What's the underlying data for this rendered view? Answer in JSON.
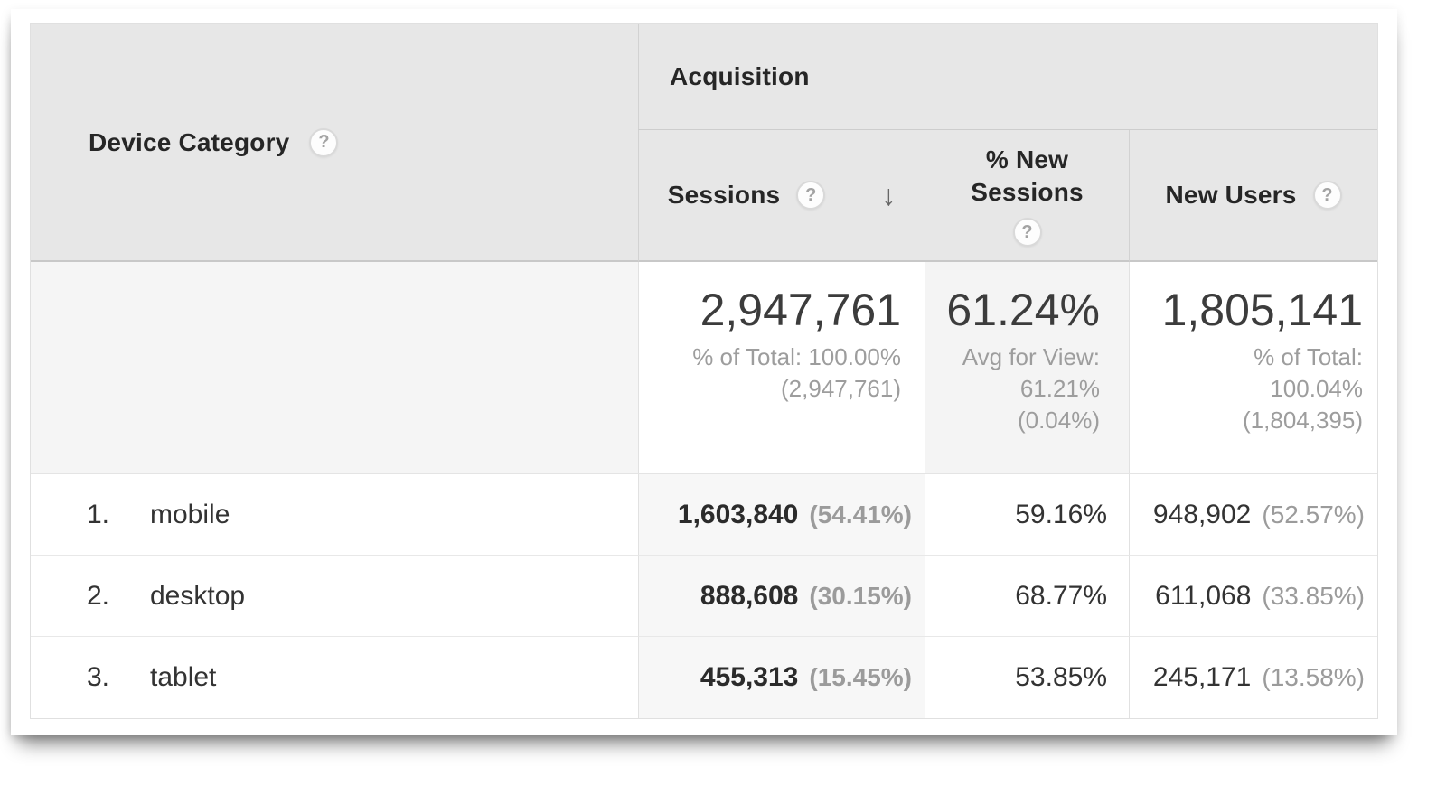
{
  "icons": {
    "help": "?",
    "sort_desc": "↓"
  },
  "colors": {
    "header_bg": "#e7e7e7",
    "sorted_column_bg": "#f7f7f7",
    "summary_dim_bg": "#f5f5f5",
    "text_dark": "#333333",
    "text_gray": "#9d9d9d"
  },
  "header": {
    "dimension_label": "Device Category",
    "group_label": "Acquisition",
    "metrics": [
      {
        "label": "Sessions",
        "sorted": "desc"
      },
      {
        "label_line1": "% New",
        "label_line2": "Sessions"
      },
      {
        "label": "New Users"
      }
    ]
  },
  "summary": {
    "sessions": {
      "value": "2,947,761",
      "sub_line1": "% of Total: 100.00%",
      "sub_line2": "(2,947,761)"
    },
    "percent_new_sessions": {
      "value": "61.24%",
      "sub_line1": "Avg for View:",
      "sub_line2": "61.21%",
      "sub_line3": "(0.04%)"
    },
    "new_users": {
      "value": "1,805,141",
      "sub_line1": "% of Total:",
      "sub_line2": "100.04%",
      "sub_line3": "(1,804,395)"
    }
  },
  "rows": [
    {
      "index": "1.",
      "device": "mobile",
      "sessions": "1,603,840",
      "sessions_pct": "(54.41%)",
      "percent_new_sessions": "59.16%",
      "new_users": "948,902",
      "new_users_pct": "(52.57%)"
    },
    {
      "index": "2.",
      "device": "desktop",
      "sessions": "888,608",
      "sessions_pct": "(30.15%)",
      "percent_new_sessions": "68.77%",
      "new_users": "611,068",
      "new_users_pct": "(33.85%)"
    },
    {
      "index": "3.",
      "device": "tablet",
      "sessions": "455,313",
      "sessions_pct": "(15.45%)",
      "percent_new_sessions": "53.85%",
      "new_users": "245,171",
      "new_users_pct": "(13.58%)"
    }
  ],
  "chart_data": {
    "type": "table",
    "title": "Device Category — Acquisition",
    "columns": [
      "Device Category",
      "Sessions",
      "Sessions % of Total",
      "% New Sessions",
      "New Users",
      "New Users % of Total"
    ],
    "rows": [
      [
        "mobile",
        1603840,
        "54.41%",
        "59.16%",
        948902,
        "52.57%"
      ],
      [
        "desktop",
        888608,
        "30.15%",
        "68.77%",
        611068,
        "33.85%"
      ],
      [
        "tablet",
        455313,
        "15.45%",
        "53.85%",
        245171,
        "13.58%"
      ]
    ],
    "totals": {
      "sessions": 2947761,
      "sessions_pct_of_total": "100.00% (2,947,761)",
      "percent_new_sessions": "61.24%",
      "percent_new_sessions_avg": "Avg for View: 61.21% (0.04%)",
      "new_users": 1805141,
      "new_users_pct_of_total": "100.04% (1,804,395)"
    }
  }
}
